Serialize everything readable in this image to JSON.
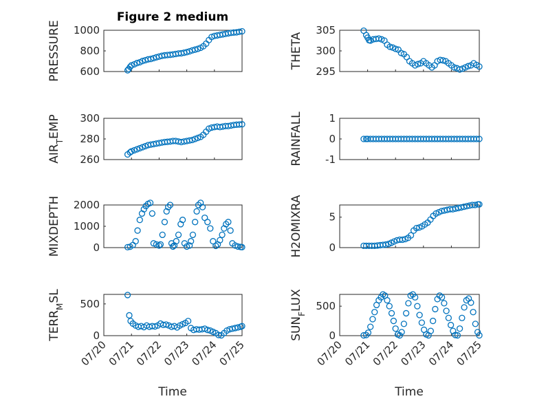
{
  "figure": {
    "title": "Figure 2 medium",
    "marker_color": "#0072BD",
    "x_tick_labels": [
      "07/20",
      "07/21",
      "07/22",
      "07/23",
      "07/24",
      "07/25"
    ],
    "x_label": "Time"
  },
  "chart_data": [
    {
      "type": "scatter",
      "ylabel": "PRESSURE",
      "ylim": [
        600,
        1000
      ],
      "yticks": [
        600,
        800,
        1000
      ],
      "xlim": [
        0,
        5
      ],
      "grid": true,
      "x": [
        0.86,
        0.9,
        0.95,
        1.0,
        1.1,
        1.2,
        1.3,
        1.4,
        1.5,
        1.6,
        1.7,
        1.8,
        1.9,
        2.0,
        2.1,
        2.2,
        2.3,
        2.4,
        2.5,
        2.6,
        2.7,
        2.8,
        2.9,
        3.0,
        3.1,
        3.2,
        3.3,
        3.4,
        3.5,
        3.6,
        3.7,
        3.8,
        3.9,
        4.0,
        4.1,
        4.2,
        4.3,
        4.4,
        4.5,
        4.6,
        4.7,
        4.8,
        4.9,
        5.0
      ],
      "y": [
        612,
        625,
        645,
        660,
        670,
        682,
        690,
        702,
        710,
        718,
        722,
        730,
        738,
        745,
        752,
        757,
        760,
        762,
        766,
        770,
        775,
        777,
        782,
        788,
        796,
        805,
        812,
        820,
        830,
        845,
        870,
        905,
        935,
        945,
        950,
        955,
        960,
        965,
        970,
        975,
        978,
        980,
        985,
        990
      ]
    },
    {
      "type": "scatter",
      "ylabel": "THETA",
      "ylim": [
        295,
        305
      ],
      "yticks": [
        295,
        300,
        305
      ],
      "xlim": [
        0,
        5
      ],
      "grid": true,
      "x": [
        0.86,
        0.95,
        1.0,
        1.05,
        1.1,
        1.2,
        1.3,
        1.4,
        1.5,
        1.6,
        1.7,
        1.8,
        1.9,
        2.0,
        2.1,
        2.2,
        2.3,
        2.4,
        2.5,
        2.6,
        2.7,
        2.8,
        2.9,
        3.0,
        3.1,
        3.2,
        3.3,
        3.4,
        3.5,
        3.6,
        3.7,
        3.8,
        3.9,
        4.0,
        4.1,
        4.2,
        4.3,
        4.4,
        4.5,
        4.6,
        4.7,
        4.8,
        4.9,
        5.0
      ],
      "y": [
        304.9,
        303.8,
        303.2,
        302.6,
        302.5,
        302.8,
        302.9,
        303.0,
        302.8,
        302.5,
        301.5,
        301.0,
        300.8,
        300.5,
        300.3,
        299.5,
        299.2,
        298.5,
        297.5,
        297.0,
        296.5,
        296.8,
        297.0,
        297.5,
        297.0,
        296.5,
        296.0,
        296.5,
        297.5,
        297.8,
        297.7,
        297.5,
        297.0,
        296.5,
        296.0,
        295.8,
        295.5,
        295.7,
        296.0,
        296.3,
        296.5,
        297.0,
        296.6,
        296.2
      ]
    },
    {
      "type": "scatter",
      "ylabel": "AIR_TEMP",
      "ylim": [
        260,
        300
      ],
      "yticks": [
        260,
        280,
        300
      ],
      "xlim": [
        0,
        5
      ],
      "grid": true,
      "x": [
        0.86,
        0.95,
        1.0,
        1.1,
        1.2,
        1.3,
        1.4,
        1.5,
        1.6,
        1.7,
        1.8,
        1.9,
        2.0,
        2.1,
        2.2,
        2.3,
        2.4,
        2.5,
        2.6,
        2.7,
        2.8,
        2.9,
        3.0,
        3.1,
        3.2,
        3.3,
        3.4,
        3.5,
        3.6,
        3.7,
        3.8,
        3.9,
        4.0,
        4.1,
        4.2,
        4.3,
        4.4,
        4.5,
        4.6,
        4.7,
        4.8,
        4.9,
        5.0
      ],
      "y": [
        265,
        267,
        268,
        269,
        270,
        271,
        272,
        273,
        274,
        274.5,
        275,
        275.5,
        276,
        276.5,
        277,
        277.2,
        277.5,
        278,
        278,
        277.5,
        277,
        277.5,
        278,
        278.5,
        279,
        280,
        281,
        282,
        284,
        287,
        290,
        291,
        291.5,
        292,
        291.5,
        292,
        292.5,
        292.5,
        293,
        293.5,
        293.8,
        294,
        294.2
      ]
    },
    {
      "type": "scatter",
      "ylabel": "RAINFALL",
      "ylim": [
        -1,
        1
      ],
      "yticks": [
        -1,
        0,
        1
      ],
      "xlim": [
        0,
        5
      ],
      "grid": true,
      "x": [
        0.86,
        0.95,
        1.0,
        1.1,
        1.2,
        1.3,
        1.4,
        1.5,
        1.6,
        1.7,
        1.8,
        1.9,
        2.0,
        2.1,
        2.2,
        2.3,
        2.4,
        2.5,
        2.6,
        2.7,
        2.8,
        2.9,
        3.0,
        3.1,
        3.2,
        3.3,
        3.4,
        3.5,
        3.6,
        3.7,
        3.8,
        3.9,
        4.0,
        4.1,
        4.2,
        4.3,
        4.4,
        4.5,
        4.6,
        4.7,
        4.8,
        4.9,
        5.0
      ],
      "y": [
        0,
        0,
        0,
        0,
        0,
        0,
        0,
        0,
        0,
        0,
        0,
        0,
        0,
        0,
        0,
        0,
        0,
        0,
        0,
        0,
        0,
        0,
        0,
        0,
        0,
        0,
        0,
        0,
        0,
        0,
        0,
        0,
        0,
        0,
        0,
        0,
        0,
        0,
        0,
        0,
        0,
        0,
        0
      ]
    },
    {
      "type": "scatter",
      "ylabel": "MIXDEPTH",
      "ylim": [
        0,
        2000
      ],
      "yticks": [
        0,
        1000,
        2000
      ],
      "xlim": [
        0,
        5
      ],
      "grid": true,
      "x": [
        0.86,
        0.95,
        1.05,
        1.15,
        1.22,
        1.3,
        1.38,
        1.45,
        1.52,
        1.6,
        1.68,
        1.75,
        1.8,
        1.9,
        2.0,
        2.05,
        2.12,
        2.2,
        2.27,
        2.33,
        2.4,
        2.45,
        2.5,
        2.55,
        2.62,
        2.7,
        2.78,
        2.85,
        2.92,
        3.0,
        3.1,
        3.15,
        3.22,
        3.3,
        3.36,
        3.42,
        3.5,
        3.57,
        3.65,
        3.75,
        3.85,
        3.95,
        4.05,
        4.12,
        4.2,
        4.28,
        4.35,
        4.42,
        4.5,
        4.58,
        4.65,
        4.75,
        4.85,
        4.95,
        5.0
      ],
      "y": [
        20,
        40,
        120,
        300,
        800,
        1300,
        1600,
        1800,
        1950,
        2050,
        2100,
        1600,
        200,
        150,
        100,
        150,
        600,
        1200,
        1700,
        1900,
        2000,
        200,
        50,
        100,
        300,
        600,
        1100,
        1300,
        200,
        50,
        100,
        300,
        600,
        1200,
        1700,
        2000,
        2100,
        1900,
        1400,
        1200,
        900,
        300,
        80,
        150,
        350,
        600,
        900,
        1100,
        1200,
        800,
        200,
        100,
        50,
        30,
        20
      ]
    },
    {
      "type": "scatter",
      "ylabel": "H2OMIXRA",
      "ylim": [
        0,
        7
      ],
      "yticks": [
        0,
        5
      ],
      "xlim": [
        0,
        5
      ],
      "grid": true,
      "x": [
        0.86,
        0.95,
        1.05,
        1.15,
        1.25,
        1.35,
        1.45,
        1.55,
        1.65,
        1.75,
        1.85,
        1.95,
        2.05,
        2.15,
        2.25,
        2.35,
        2.45,
        2.55,
        2.65,
        2.75,
        2.85,
        2.95,
        3.05,
        3.15,
        3.25,
        3.35,
        3.45,
        3.55,
        3.65,
        3.75,
        3.85,
        3.95,
        4.05,
        4.15,
        4.25,
        4.35,
        4.45,
        4.55,
        4.65,
        4.75,
        4.85,
        4.95,
        5.0
      ],
      "y": [
        0.3,
        0.3,
        0.3,
        0.3,
        0.3,
        0.35,
        0.4,
        0.45,
        0.5,
        0.6,
        0.8,
        1.0,
        1.2,
        1.3,
        1.3,
        1.4,
        1.6,
        2.0,
        2.8,
        3.2,
        3.3,
        3.5,
        3.8,
        4.1,
        4.6,
        5.2,
        5.6,
        5.8,
        6.0,
        6.1,
        6.2,
        6.3,
        6.3,
        6.4,
        6.5,
        6.6,
        6.7,
        6.8,
        6.9,
        7.0,
        7.0,
        7.1,
        7.1
      ]
    },
    {
      "type": "scatter",
      "ylabel": "TERR_MSL",
      "ylim": [
        0,
        650
      ],
      "yticks": [
        0,
        500
      ],
      "xlim": [
        0,
        5
      ],
      "grid": true,
      "x": [
        0.86,
        0.92,
        0.97,
        1.05,
        1.15,
        1.25,
        1.35,
        1.45,
        1.55,
        1.65,
        1.75,
        1.85,
        1.95,
        2.05,
        2.15,
        2.25,
        2.35,
        2.45,
        2.55,
        2.65,
        2.75,
        2.85,
        2.95,
        3.05,
        3.15,
        3.25,
        3.35,
        3.45,
        3.55,
        3.65,
        3.75,
        3.85,
        3.95,
        4.05,
        4.15,
        4.25,
        4.35,
        4.45,
        4.55,
        4.65,
        4.75,
        4.85,
        4.95,
        5.0
      ],
      "y": [
        640,
        320,
        230,
        190,
        160,
        140,
        150,
        135,
        160,
        140,
        150,
        145,
        160,
        190,
        170,
        175,
        160,
        140,
        150,
        130,
        160,
        180,
        200,
        230,
        120,
        90,
        100,
        95,
        100,
        110,
        90,
        80,
        60,
        40,
        10,
        5,
        40,
        80,
        100,
        110,
        120,
        130,
        140,
        150
      ]
    },
    {
      "type": "scatter",
      "ylabel": "SUN_FLUX",
      "ylim": [
        0,
        700
      ],
      "yticks": [
        0,
        500
      ],
      "xlim": [
        0,
        5
      ],
      "grid": true,
      "x": [
        0.86,
        0.95,
        1.02,
        1.1,
        1.18,
        1.25,
        1.32,
        1.4,
        1.48,
        1.55,
        1.62,
        1.7,
        1.78,
        1.86,
        1.93,
        2.0,
        2.08,
        2.15,
        2.22,
        2.3,
        2.38,
        2.46,
        2.54,
        2.62,
        2.7,
        2.78,
        2.86,
        2.94,
        3.02,
        3.1,
        3.18,
        3.26,
        3.34,
        3.42,
        3.5,
        3.58,
        3.66,
        3.74,
        3.82,
        3.9,
        3.98,
        4.06,
        4.14,
        4.22,
        4.3,
        4.38,
        4.46,
        4.54,
        4.62,
        4.7,
        4.78,
        4.86,
        4.94,
        5.0
      ],
      "y": [
        5,
        10,
        50,
        150,
        280,
        400,
        520,
        600,
        650,
        700,
        680,
        600,
        500,
        380,
        250,
        120,
        20,
        5,
        60,
        200,
        380,
        550,
        680,
        700,
        650,
        500,
        350,
        220,
        100,
        20,
        5,
        80,
        250,
        450,
        620,
        680,
        650,
        550,
        420,
        300,
        180,
        80,
        10,
        5,
        120,
        300,
        480,
        600,
        630,
        560,
        400,
        200,
        60,
        5
      ]
    }
  ]
}
